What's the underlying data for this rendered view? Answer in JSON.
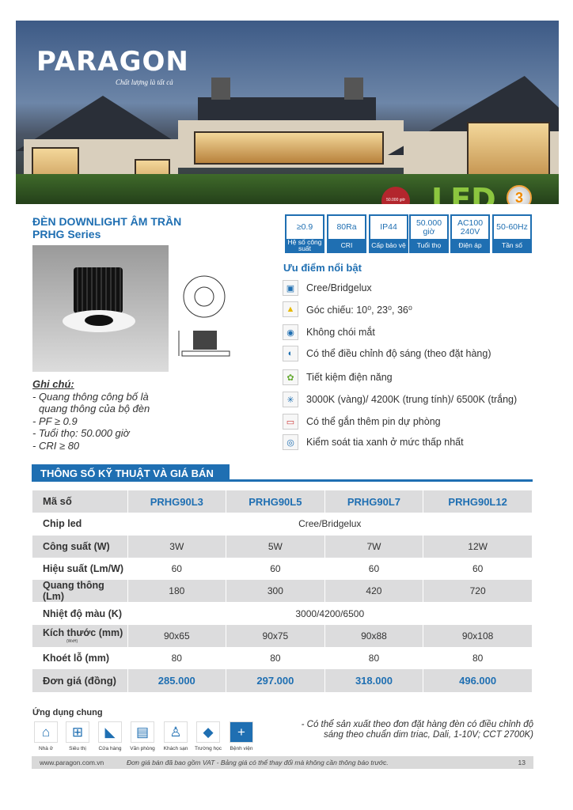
{
  "hero": {
    "brand": "PARAGON",
    "tagline": "Chất lượng là tất cả",
    "led_badge": "LED",
    "lifetime_badge": "50.000 giờ",
    "warranty_years": "3"
  },
  "product": {
    "title": "ĐÈN DOWNLIGHT ÂM TRẦN",
    "series": "PRHG Series"
  },
  "specs": [
    {
      "value": "≥0.9",
      "label": "Hệ số công suất"
    },
    {
      "value": "80Ra",
      "label": "CRI"
    },
    {
      "value": "IP44",
      "label": "Cấp bảo vệ"
    },
    {
      "value": "50.000 giờ",
      "label": "Tuổi thọ"
    },
    {
      "value": "AC100 240V",
      "label": "Điện áp"
    },
    {
      "value": "50-60Hz",
      "label": "Tần số"
    }
  ],
  "advantages": {
    "title": "Ưu điểm nổi bật",
    "items": [
      {
        "icon": "chip-icon",
        "text": "Cree/Bridgelux"
      },
      {
        "icon": "beam-angle-icon",
        "text": "Góc chiếu:  10⁰, 23⁰, 36⁰"
      },
      {
        "icon": "eye-icon",
        "text": "Không chói mắt"
      },
      {
        "icon": "dimmer-icon",
        "text": "Có thể điều chỉnh độ sáng (theo đặt hàng)"
      },
      {
        "icon": "energy-saving-icon",
        "text": "Tiết kiệm điện năng"
      },
      {
        "icon": "color-temperature-icon",
        "text": "3000K (vàng)/ 4200K (trung tính)/ 6500K (trắng)"
      },
      {
        "icon": "battery-icon",
        "text": "Có thể gắn thêm pin dự phòng"
      },
      {
        "icon": "blue-light-icon",
        "text": "Kiểm soát tia xanh ở mức thấp nhất"
      }
    ]
  },
  "notes": {
    "title": "Ghi chú:",
    "lines": [
      "- Quang thông công bố là",
      "  quang thông của bộ đèn",
      "- PF ≥ 0.9",
      "- Tuổi thọ: 50.000 giờ",
      "- CRI ≥ 80"
    ]
  },
  "section_title": "THÔNG SỐ KỸ THUẬT VÀ GIÁ BÁN",
  "table": {
    "header": {
      "label": "Mã số",
      "cols": [
        "PRHG90L3",
        "PRHG90L5",
        "PRHG90L7",
        "PRHG90L12"
      ]
    },
    "chip": {
      "label": "Chip led",
      "value": "Cree/Bridgelux"
    },
    "power": {
      "label": "Công suất (W)",
      "cols": [
        "3W",
        "5W",
        "7W",
        "12W"
      ]
    },
    "efficiency": {
      "label": "Hiệu suất (Lm/W)",
      "cols": [
        "60",
        "60",
        "60",
        "60"
      ]
    },
    "flux": {
      "label": "Quang thông (Lm)",
      "cols": [
        "180",
        "300",
        "420",
        "720"
      ]
    },
    "cct": {
      "label": "Nhiệt độ màu (K)",
      "value": "3000/4200/6500"
    },
    "size": {
      "label": "Kích thước (mm)",
      "sub": "(WxH)",
      "cols": [
        "90x65",
        "90x75",
        "90x88",
        "90x108"
      ]
    },
    "cutout": {
      "label": "Khoét lỗ (mm)",
      "cols": [
        "80",
        "80",
        "80",
        "80"
      ]
    },
    "price": {
      "label": "Đơn giá (đồng)",
      "cols": [
        "285.000",
        "297.000",
        "318.000",
        "496.000"
      ]
    }
  },
  "applications": {
    "title": "Ứng dụng chung",
    "items": [
      {
        "icon": "house-icon",
        "label": "Nhà ở"
      },
      {
        "icon": "cart-icon",
        "label": "Siêu thị"
      },
      {
        "icon": "shoe-icon",
        "label": "Cửa hàng"
      },
      {
        "icon": "office-icon",
        "label": "Văn phòng"
      },
      {
        "icon": "waiter-icon",
        "label": "Khách sạn"
      },
      {
        "icon": "graduation-cap-icon",
        "label": "Trường học"
      },
      {
        "icon": "hospital-icon",
        "label": "Bệnh viện"
      }
    ]
  },
  "custom_note": "- Có thể sản xuất theo đơn đặt hàng đèn có điều chỉnh độ sáng theo chuẩn dim triac, Dali, 1-10V; CCT 2700K)",
  "footer": {
    "website": "www.paragon.com.vn",
    "disclaimer": "Đơn giá bán đã bao gồm VAT - Bảng giá có thể thay đổi mà không cần thông báo trước.",
    "page": "13"
  },
  "colors": {
    "accent": "#1f6fb2",
    "row_gray": "#dcdcdd",
    "led_green": "#8cc63f"
  }
}
